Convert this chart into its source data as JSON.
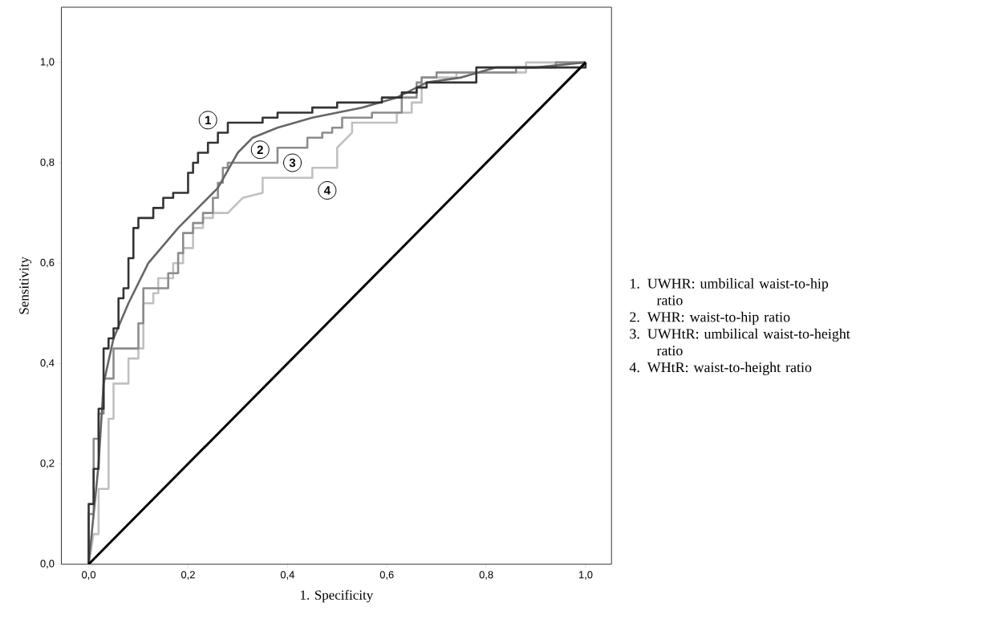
{
  "chart_data": {
    "type": "line",
    "xlabel": "1. Specificity",
    "ylabel": "Sensitivity",
    "xlim": [
      -0.055,
      1.052
    ],
    "ylim": [
      0,
      1.11
    ],
    "xticks": [
      {
        "value": 0,
        "label": "0,0"
      },
      {
        "value": 0.2,
        "label": "0,2"
      },
      {
        "value": 0.4,
        "label": "0,4"
      },
      {
        "value": 0.6,
        "label": "0,6"
      },
      {
        "value": 0.8,
        "label": "0,8"
      },
      {
        "value": 1,
        "label": "1,0"
      }
    ],
    "yticks": [
      {
        "value": 0,
        "label": "0,0"
      },
      {
        "value": 0.2,
        "label": "0,2"
      },
      {
        "value": 0.4,
        "label": "0,4"
      },
      {
        "value": 0.6,
        "label": "0,6"
      },
      {
        "value": 0.8,
        "label": "0,8"
      },
      {
        "value": 1,
        "label": "1,0"
      }
    ],
    "grid": false,
    "marker": "none",
    "line_style": "solid",
    "series": [
      {
        "name": "4",
        "color": "#c0c0c0",
        "x": [
          0,
          0.01,
          0.02,
          0.02,
          0.04,
          0.04,
          0.05,
          0.05,
          0.08,
          0.08,
          0.1,
          0.1,
          0.11,
          0.11,
          0.13,
          0.13,
          0.14,
          0.14,
          0.17,
          0.17,
          0.19,
          0.19,
          0.21,
          0.21,
          0.23,
          0.23,
          0.25,
          0.25,
          0.28,
          0.31,
          0.35,
          0.35,
          0.45,
          0.45,
          0.5,
          0.5,
          0.53,
          0.53,
          0.62,
          0.62,
          0.65,
          0.65,
          0.67,
          0.67,
          0.74,
          0.74,
          0.88,
          0.88,
          1
        ],
        "values": [
          0,
          0.06,
          0.06,
          0.15,
          0.15,
          0.29,
          0.29,
          0.36,
          0.36,
          0.41,
          0.41,
          0.43,
          0.43,
          0.52,
          0.52,
          0.54,
          0.54,
          0.57,
          0.57,
          0.6,
          0.6,
          0.63,
          0.63,
          0.67,
          0.67,
          0.69,
          0.69,
          0.7,
          0.7,
          0.73,
          0.74,
          0.77,
          0.77,
          0.79,
          0.79,
          0.83,
          0.86,
          0.88,
          0.88,
          0.9,
          0.9,
          0.92,
          0.92,
          0.97,
          0.97,
          0.98,
          0.98,
          1.0,
          1.0
        ]
      },
      {
        "name": "3",
        "color": "#8c8c8c",
        "x": [
          0,
          0,
          0.01,
          0.01,
          0.02,
          0.02,
          0.03,
          0.03,
          0.05,
          0.05,
          0.1,
          0.1,
          0.11,
          0.11,
          0.16,
          0.16,
          0.18,
          0.18,
          0.19,
          0.19,
          0.21,
          0.21,
          0.23,
          0.23,
          0.25,
          0.25,
          0.26,
          0.26,
          0.27,
          0.27,
          0.28,
          0.28,
          0.38,
          0.38,
          0.44,
          0.44,
          0.47,
          0.47,
          0.49,
          0.49,
          0.51,
          0.51,
          0.57,
          0.57,
          0.63,
          0.63,
          0.66,
          0.66,
          0.67,
          0.67,
          0.7,
          0.7,
          0.86,
          0.86,
          0.94,
          0.94,
          1
        ],
        "values": [
          0,
          0.1,
          0.1,
          0.25,
          0.25,
          0.3,
          0.3,
          0.37,
          0.37,
          0.43,
          0.43,
          0.48,
          0.48,
          0.55,
          0.55,
          0.58,
          0.58,
          0.62,
          0.62,
          0.66,
          0.66,
          0.68,
          0.68,
          0.7,
          0.7,
          0.73,
          0.73,
          0.76,
          0.76,
          0.79,
          0.79,
          0.8,
          0.8,
          0.83,
          0.83,
          0.85,
          0.85,
          0.86,
          0.86,
          0.87,
          0.87,
          0.89,
          0.89,
          0.9,
          0.9,
          0.93,
          0.93,
          0.96,
          0.96,
          0.97,
          0.97,
          0.98,
          0.98,
          0.99,
          0.99,
          1.0,
          1.0
        ]
      },
      {
        "name": "2",
        "color": "#666666",
        "x": [
          0,
          0.02,
          0.03,
          0.05,
          0.08,
          0.12,
          0.18,
          0.26,
          0.3,
          0.33,
          0.38,
          0.45,
          0.55,
          0.62,
          0.68,
          0.75,
          0.82,
          0.9,
          1
        ],
        "values": [
          0,
          0.2,
          0.36,
          0.45,
          0.52,
          0.6,
          0.67,
          0.75,
          0.82,
          0.85,
          0.87,
          0.89,
          0.91,
          0.93,
          0.96,
          0.97,
          0.99,
          0.99,
          1
        ]
      },
      {
        "name": "1",
        "color": "#333333",
        "x": [
          0,
          0,
          0.01,
          0.01,
          0.02,
          0.02,
          0.03,
          0.03,
          0.04,
          0.04,
          0.05,
          0.05,
          0.06,
          0.06,
          0.07,
          0.07,
          0.08,
          0.08,
          0.09,
          0.09,
          0.1,
          0.1,
          0.13,
          0.13,
          0.15,
          0.15,
          0.17,
          0.17,
          0.2,
          0.2,
          0.21,
          0.21,
          0.22,
          0.22,
          0.24,
          0.24,
          0.26,
          0.26,
          0.28,
          0.28,
          0.35,
          0.35,
          0.38,
          0.38,
          0.45,
          0.45,
          0.5,
          0.5,
          0.59,
          0.59,
          0.63,
          0.63,
          0.66,
          0.66,
          0.68,
          0.68,
          0.78,
          0.78,
          1,
          1
        ],
        "values": [
          0,
          0.12,
          0.12,
          0.19,
          0.19,
          0.31,
          0.31,
          0.43,
          0.43,
          0.45,
          0.45,
          0.47,
          0.47,
          0.53,
          0.53,
          0.55,
          0.55,
          0.61,
          0.61,
          0.67,
          0.67,
          0.69,
          0.69,
          0.71,
          0.71,
          0.73,
          0.73,
          0.74,
          0.74,
          0.78,
          0.78,
          0.8,
          0.8,
          0.82,
          0.82,
          0.84,
          0.84,
          0.86,
          0.86,
          0.88,
          0.88,
          0.89,
          0.89,
          0.9,
          0.9,
          0.91,
          0.91,
          0.92,
          0.92,
          0.93,
          0.93,
          0.94,
          0.94,
          0.95,
          0.95,
          0.96,
          0.96,
          0.99,
          0.99,
          1
        ]
      },
      {
        "color": "#000000",
        "x": [
          0,
          1
        ],
        "values": [
          0,
          1
        ]
      }
    ],
    "annotations": [
      "1. UWHR: umbilical waist-to-hip ratio",
      "2. WHR: waist-to-hip ratio",
      "3. UWHtR: umbilical waist-to-height ratio",
      "4. WHtR: waist-to-height ratio"
    ]
  }
}
